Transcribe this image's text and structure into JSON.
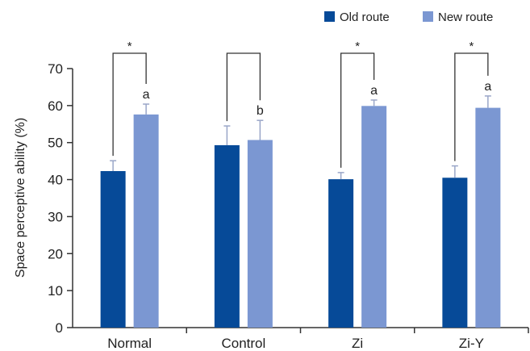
{
  "chart_data": {
    "type": "bar",
    "ylabel": "Space perceptive ability (%)",
    "xlabel": "",
    "ylim": [
      0,
      70
    ],
    "yticks": [
      0,
      10,
      20,
      30,
      40,
      50,
      60,
      70
    ],
    "categories": [
      "Normal",
      "Control",
      "Zi",
      "Zi-Y"
    ],
    "series": [
      {
        "name": "Old route",
        "color": "#064a98",
        "values": [
          42.3,
          49.3,
          40.1,
          40.5
        ],
        "errors": [
          2.8,
          5.2,
          1.8,
          3.2
        ]
      },
      {
        "name": "New route",
        "color": "#7b97d2",
        "values": [
          57.6,
          50.7,
          59.9,
          59.4
        ],
        "errors": [
          2.8,
          5.3,
          1.6,
          3.2
        ]
      }
    ],
    "significance": [
      "*",
      "",
      "*",
      "*"
    ],
    "group_letters": [
      "a",
      "b",
      "a",
      "a"
    ],
    "legend": {
      "position": "top-right"
    },
    "grid": false,
    "error_bar_color": "#9aa6c8"
  }
}
